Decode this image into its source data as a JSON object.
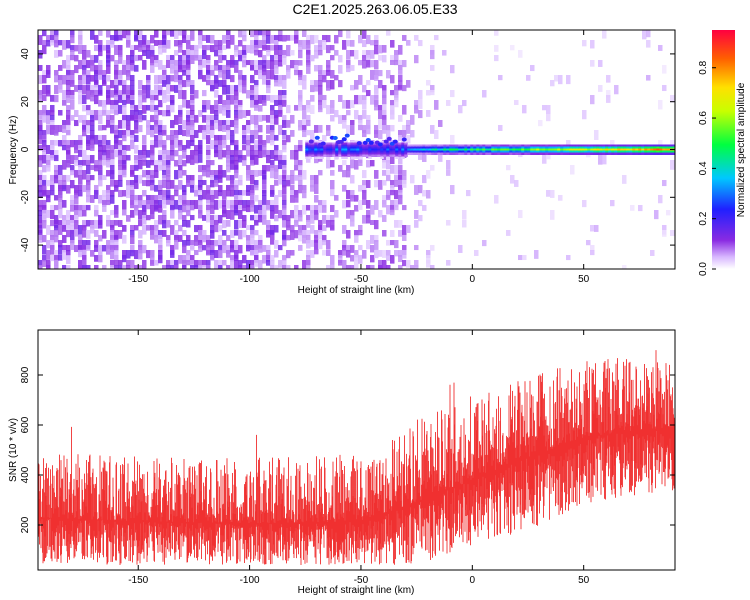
{
  "title": "C2E1.2025.263.06.05.E33",
  "chart_data": [
    {
      "type": "heatmap",
      "xlabel": "Height of straight line (km)",
      "ylabel": "Frequency (Hz)",
      "xlim": [
        -195,
        91
      ],
      "ylim": [
        -50,
        50
      ],
      "xticks": [
        -150,
        -100,
        -50,
        0,
        50
      ],
      "yticks": [
        -40,
        -20,
        0,
        20,
        40
      ],
      "colorbar": {
        "label": "Normalized spectral amplitude",
        "range": [
          0,
          0.95
        ],
        "ticks": [
          0.0,
          0.2,
          0.4,
          0.6,
          0.8
        ],
        "colormap": "rainbow (white-violet-blue-cyan-green-yellow-red)"
      },
      "signal_band": {
        "center_frequency_hz": 0,
        "approx_x_range_km": [
          -75,
          91
        ],
        "peak_amplitude": 0.95,
        "peak_near_x_km": 88
      },
      "noise_region_x_km": [
        -195,
        -30
      ]
    },
    {
      "type": "line",
      "xlabel": "Height of straight line (km)",
      "ylabel": "SNR (10 * v/v)",
      "xlim": [
        -195,
        91
      ],
      "ylim": [
        20,
        980
      ],
      "xticks": [
        -150,
        -100,
        -50,
        0,
        50
      ],
      "yticks": [
        200,
        400,
        600,
        800
      ],
      "series_color": "#f03030",
      "envelope": {
        "x": [
          -195,
          -150,
          -100,
          -50,
          -25,
          0,
          25,
          50,
          75,
          91
        ],
        "low": [
          40,
          40,
          40,
          40,
          40,
          120,
          180,
          280,
          320,
          330
        ],
        "mid": [
          230,
          215,
          205,
          215,
          290,
          380,
          470,
          550,
          580,
          590
        ],
        "high": [
          500,
          470,
          470,
          490,
          620,
          720,
          800,
          860,
          870,
          860
        ]
      }
    }
  ]
}
